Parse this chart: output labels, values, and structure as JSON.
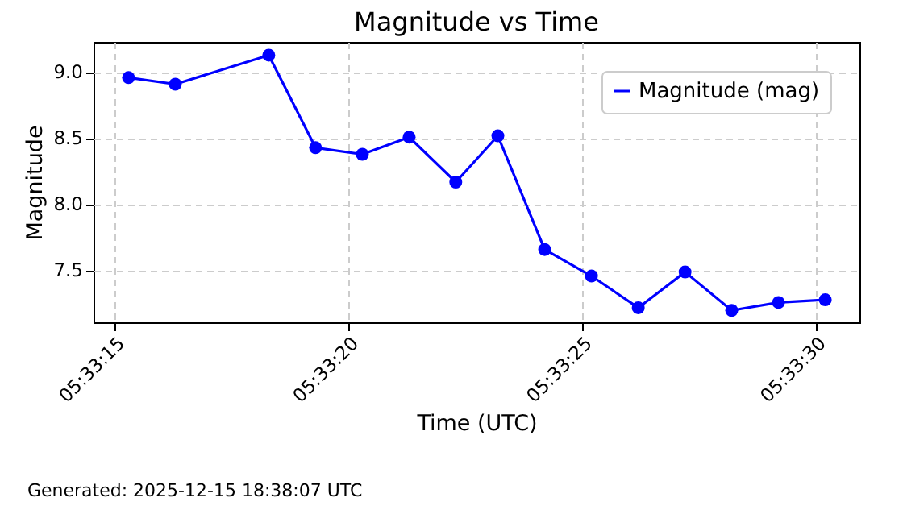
{
  "chart_data": {
    "type": "line",
    "title": "Magnitude vs Time",
    "xlabel": "Time (UTC)",
    "ylabel": "Magnitude",
    "x": [
      5.55425,
      5.554528,
      5.555083,
      5.555361,
      5.555639,
      5.555917,
      5.556194,
      5.556444,
      5.556722,
      5.557,
      5.557278,
      5.557556,
      5.557833,
      5.558111,
      5.558389
    ],
    "series": [
      {
        "name": "Magnitude (mag)",
        "color": "#0000ff",
        "values": [
          8.96,
          8.91,
          9.13,
          8.43,
          8.38,
          8.51,
          8.17,
          8.52,
          7.66,
          7.46,
          7.22,
          7.49,
          7.2,
          7.26,
          7.28
        ]
      }
    ],
    "xlim": [
      5.554042,
      5.558592
    ],
    "xticks": [
      {
        "value": 5.554167,
        "label": "05:33:15"
      },
      {
        "value": 5.555556,
        "label": "05:33:20"
      },
      {
        "value": 5.556944,
        "label": "05:33:25"
      },
      {
        "value": 5.558333,
        "label": "05:33:30"
      }
    ],
    "ylim": [
      7.11,
      9.23
    ],
    "yticks": [
      {
        "value": 7.5,
        "label": "7.5"
      },
      {
        "value": 8,
        "label": "8.0"
      },
      {
        "value": 8.5,
        "label": "8.5"
      },
      {
        "value": 9,
        "label": "9.0"
      }
    ],
    "grid": true,
    "legend": "top right",
    "marker": "circle",
    "line_style": "solid",
    "annotations": [
      "Generated: 2025-12-15 18:38:07 UTC"
    ]
  }
}
